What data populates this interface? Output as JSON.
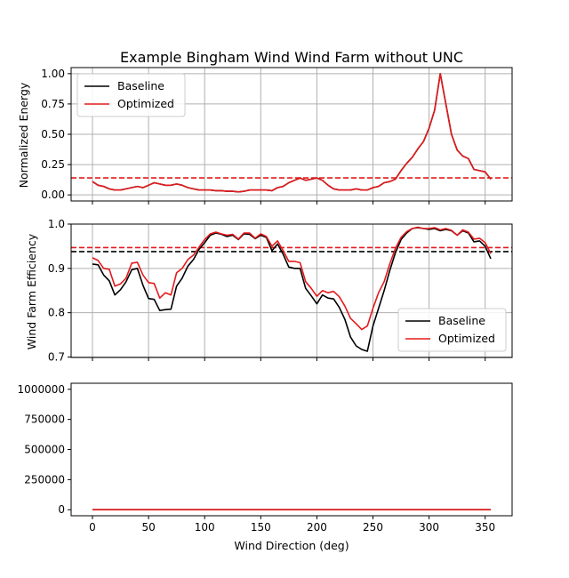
{
  "figure": {
    "title": "Example Bingham Wind Wind Farm without UNC",
    "xlabel": "Wind Direction (deg)"
  },
  "chart_data": [
    {
      "type": "line",
      "ylabel": "Normalized Energy",
      "xlim": [
        -19,
        374
      ],
      "ylim": [
        -0.05,
        1.05
      ],
      "xticks": [
        0,
        50,
        100,
        150,
        200,
        250,
        300,
        350
      ],
      "yticks": [
        0.0,
        0.25,
        0.5,
        0.75,
        1.0
      ],
      "ytick_labels": [
        "0.00",
        "0.25",
        "0.50",
        "0.75",
        "1.00"
      ],
      "grid": true,
      "legend": "upper-left",
      "x": [
        0,
        5,
        10,
        15,
        20,
        25,
        30,
        35,
        40,
        45,
        50,
        55,
        60,
        65,
        70,
        75,
        80,
        85,
        90,
        95,
        100,
        105,
        110,
        115,
        120,
        125,
        130,
        135,
        140,
        145,
        150,
        155,
        160,
        165,
        170,
        175,
        180,
        185,
        190,
        195,
        200,
        205,
        210,
        215,
        220,
        225,
        230,
        235,
        240,
        245,
        250,
        255,
        260,
        265,
        270,
        275,
        280,
        285,
        290,
        295,
        300,
        305,
        310,
        315,
        320,
        325,
        330,
        335,
        340,
        345,
        350,
        355
      ],
      "series": [
        {
          "name": "Baseline",
          "color": "#000000",
          "values": [
            0.11,
            0.08,
            0.07,
            0.05,
            0.04,
            0.04,
            0.05,
            0.06,
            0.07,
            0.06,
            0.08,
            0.1,
            0.09,
            0.08,
            0.08,
            0.09,
            0.08,
            0.06,
            0.05,
            0.04,
            0.04,
            0.04,
            0.035,
            0.035,
            0.03,
            0.03,
            0.025,
            0.03,
            0.04,
            0.04,
            0.04,
            0.04,
            0.035,
            0.06,
            0.07,
            0.1,
            0.12,
            0.14,
            0.12,
            0.13,
            0.14,
            0.12,
            0.08,
            0.05,
            0.04,
            0.04,
            0.04,
            0.05,
            0.04,
            0.04,
            0.06,
            0.07,
            0.1,
            0.11,
            0.13,
            0.2,
            0.26,
            0.31,
            0.38,
            0.44,
            0.55,
            0.7,
            1.0,
            0.75,
            0.5,
            0.37,
            0.32,
            0.3,
            0.21,
            0.2,
            0.19,
            0.13
          ]
        },
        {
          "name": "Optimized",
          "color": "#e41a1c",
          "values": [
            0.11,
            0.08,
            0.07,
            0.05,
            0.04,
            0.04,
            0.05,
            0.06,
            0.07,
            0.06,
            0.08,
            0.1,
            0.09,
            0.08,
            0.08,
            0.09,
            0.08,
            0.06,
            0.05,
            0.04,
            0.04,
            0.04,
            0.035,
            0.035,
            0.03,
            0.03,
            0.025,
            0.03,
            0.04,
            0.04,
            0.04,
            0.04,
            0.035,
            0.06,
            0.07,
            0.1,
            0.12,
            0.14,
            0.12,
            0.13,
            0.14,
            0.12,
            0.08,
            0.05,
            0.04,
            0.04,
            0.04,
            0.05,
            0.04,
            0.04,
            0.06,
            0.07,
            0.1,
            0.11,
            0.13,
            0.2,
            0.26,
            0.31,
            0.38,
            0.44,
            0.55,
            0.7,
            1.0,
            0.75,
            0.5,
            0.37,
            0.32,
            0.3,
            0.21,
            0.2,
            0.19,
            0.13
          ]
        }
      ],
      "hlines": [
        {
          "y": 0.14,
          "color": "#e41a1c",
          "style": "dashed"
        }
      ]
    },
    {
      "type": "line",
      "ylabel": "Wind Farm Efficiency",
      "xlim": [
        -19,
        374
      ],
      "ylim": [
        0.699,
        1.0
      ],
      "xticks": [
        0,
        50,
        100,
        150,
        200,
        250,
        300,
        350
      ],
      "yticks": [
        0.7,
        0.8,
        0.9,
        1.0
      ],
      "ytick_labels": [
        "0.7",
        "0.8",
        "0.9",
        "1.0"
      ],
      "grid": true,
      "legend": "lower-right",
      "x": [
        0,
        5,
        10,
        15,
        20,
        25,
        30,
        35,
        40,
        45,
        50,
        55,
        60,
        65,
        70,
        75,
        80,
        85,
        90,
        95,
        100,
        105,
        110,
        115,
        120,
        125,
        130,
        135,
        140,
        145,
        150,
        155,
        160,
        165,
        170,
        175,
        180,
        185,
        190,
        195,
        200,
        205,
        210,
        215,
        220,
        225,
        230,
        235,
        240,
        245,
        250,
        255,
        260,
        265,
        270,
        275,
        280,
        285,
        290,
        295,
        300,
        305,
        310,
        315,
        320,
        325,
        330,
        335,
        340,
        345,
        350,
        355
      ],
      "series": [
        {
          "name": "Baseline",
          "color": "#000000",
          "values": [
            0.91,
            0.908,
            0.885,
            0.872,
            0.84,
            0.852,
            0.87,
            0.897,
            0.9,
            0.862,
            0.832,
            0.83,
            0.805,
            0.807,
            0.808,
            0.86,
            0.878,
            0.905,
            0.92,
            0.943,
            0.958,
            0.975,
            0.98,
            0.977,
            0.972,
            0.975,
            0.965,
            0.978,
            0.977,
            0.967,
            0.975,
            0.97,
            0.94,
            0.955,
            0.932,
            0.903,
            0.9,
            0.9,
            0.855,
            0.838,
            0.82,
            0.84,
            0.833,
            0.831,
            0.812,
            0.785,
            0.745,
            0.725,
            0.717,
            0.713,
            0.77,
            0.81,
            0.85,
            0.895,
            0.935,
            0.965,
            0.98,
            0.99,
            0.992,
            0.99,
            0.988,
            0.99,
            0.985,
            0.988,
            0.985,
            0.975,
            0.985,
            0.98,
            0.96,
            0.962,
            0.95,
            0.922
          ]
        },
        {
          "name": "Optimized",
          "color": "#e41a1c",
          "values": [
            0.924,
            0.918,
            0.9,
            0.898,
            0.86,
            0.865,
            0.878,
            0.912,
            0.914,
            0.885,
            0.868,
            0.866,
            0.833,
            0.845,
            0.84,
            0.89,
            0.9,
            0.92,
            0.93,
            0.948,
            0.965,
            0.978,
            0.982,
            0.978,
            0.975,
            0.977,
            0.966,
            0.98,
            0.98,
            0.968,
            0.978,
            0.972,
            0.95,
            0.962,
            0.94,
            0.916,
            0.916,
            0.913,
            0.87,
            0.855,
            0.837,
            0.85,
            0.845,
            0.848,
            0.836,
            0.815,
            0.787,
            0.775,
            0.762,
            0.77,
            0.81,
            0.845,
            0.87,
            0.91,
            0.945,
            0.97,
            0.983,
            0.99,
            0.993,
            0.99,
            0.99,
            0.992,
            0.987,
            0.99,
            0.986,
            0.975,
            0.987,
            0.982,
            0.966,
            0.968,
            0.958,
            0.933
          ]
        }
      ],
      "hlines": [
        {
          "y": 0.938,
          "color": "#000000",
          "style": "dashed"
        },
        {
          "y": 0.947,
          "color": "#e41a1c",
          "style": "dashed"
        }
      ]
    },
    {
      "type": "line",
      "ylabel": "",
      "xlim": [
        -19,
        374
      ],
      "ylim": [
        -50000,
        1050000
      ],
      "xticks": [
        0,
        50,
        100,
        150,
        200,
        250,
        300,
        350
      ],
      "xtick_labels": [
        "0",
        "50",
        "100",
        "150",
        "200",
        "250",
        "300",
        "350"
      ],
      "yticks": [
        0,
        250000,
        500000,
        750000,
        1000000
      ],
      "ytick_labels": [
        "0",
        "250000",
        "500000",
        "750000",
        "1000000"
      ],
      "grid": false,
      "legend": "none",
      "x": [
        0,
        355
      ],
      "series": [
        {
          "name": "Baseline",
          "color": "#000000",
          "values": [
            0,
            0
          ]
        },
        {
          "name": "Optimized",
          "color": "#e41a1c",
          "values": [
            0,
            0
          ]
        }
      ],
      "hlines": []
    }
  ]
}
